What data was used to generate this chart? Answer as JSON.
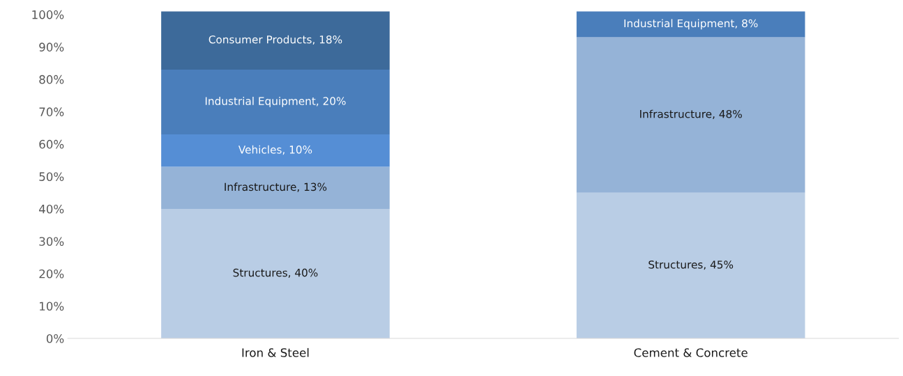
{
  "chart_data": {
    "type": "bar",
    "stacked": true,
    "categories": [
      "Iron & Steel",
      "Cement & Concrete"
    ],
    "series": [
      {
        "color": "#b9cde5",
        "values": [
          40,
          45
        ],
        "value_labels": [
          "Structures, 40%",
          "Structures, 45%"
        ]
      },
      {
        "color": "#95b3d7",
        "values": [
          13,
          48
        ],
        "value_labels": [
          "Infrastructure, 13%",
          "Infrastructure, 48%"
        ]
      },
      {
        "color": "#558ed5",
        "values": [
          10,
          null
        ],
        "value_labels": [
          "Vehicles, 10%",
          null
        ]
      },
      {
        "color": "#4a7ebb",
        "values": [
          20,
          8
        ],
        "value_labels": [
          "Industrial Equipment, 20%",
          "Industrial Equipment, 8%"
        ]
      },
      {
        "color": "#3d6a9a",
        "values": [
          18,
          null
        ],
        "value_labels": [
          "Consumer Products, 18%",
          null
        ]
      }
    ],
    "ylim": [
      0,
      101
    ],
    "yticks": [
      {
        "value": 0,
        "label": "0%"
      },
      {
        "value": 10,
        "label": "10%"
      },
      {
        "value": 20,
        "label": "20%"
      },
      {
        "value": 30,
        "label": "30%"
      },
      {
        "value": 40,
        "label": "40%"
      },
      {
        "value": 50,
        "label": "50%"
      },
      {
        "value": 60,
        "label": "60%"
      },
      {
        "value": 70,
        "label": "70%"
      },
      {
        "value": 80,
        "label": "80%"
      },
      {
        "value": 90,
        "label": "90%"
      },
      {
        "value": 100,
        "label": "100%"
      }
    ],
    "grid": false,
    "legend": false
  }
}
